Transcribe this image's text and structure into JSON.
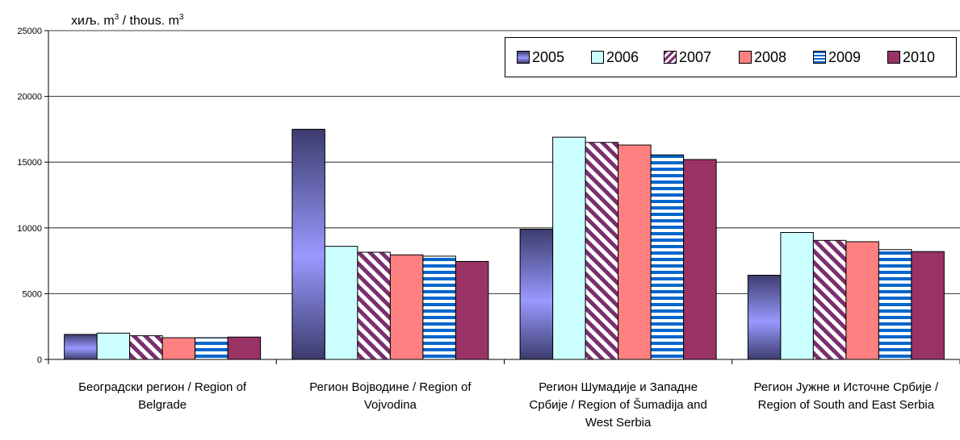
{
  "chart_data": {
    "type": "bar",
    "ylabel_prefix": "хиљ. m",
    "ylabel_middle": " / thous. m",
    "ylabel_sup": "3",
    "ylim": [
      0,
      25000
    ],
    "yticks": [
      "0",
      "5000",
      "10000",
      "15000",
      "20000",
      "25000"
    ],
    "categories": [
      [
        "Београдски регион / Region of",
        "Belgrade"
      ],
      [
        "Регион Војводине / Region of",
        "Vojvodina"
      ],
      [
        "Регион Шумадије и Западне",
        "Србије / Region of Šumadija and",
        "West Serbia"
      ],
      [
        "Регион Јужне и Источне Србије /",
        "Region of South and East Serbia"
      ]
    ],
    "series": [
      {
        "name": "2005",
        "values": [
          1900,
          17500,
          9900,
          6400
        ],
        "color": "#5a5aa0"
      },
      {
        "name": "2006",
        "values": [
          2000,
          8600,
          16900,
          9650
        ],
        "color": "#ccffff"
      },
      {
        "name": "2007",
        "values": [
          1800,
          8150,
          16500,
          9050
        ],
        "color": "#7a2f6e"
      },
      {
        "name": "2008",
        "values": [
          1650,
          7950,
          16300,
          8950
        ],
        "color": "#ff8080"
      },
      {
        "name": "2009",
        "values": [
          1650,
          7850,
          15550,
          8350
        ],
        "color": "#0066cc"
      },
      {
        "name": "2010",
        "values": [
          1700,
          7450,
          15200,
          8200
        ],
        "color": "#993366"
      }
    ],
    "legend_position": "top-right",
    "grid": true
  }
}
